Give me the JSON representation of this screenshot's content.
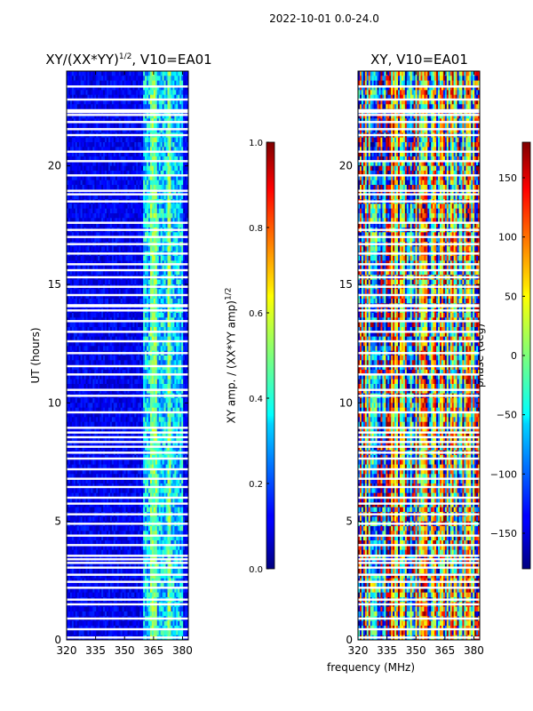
{
  "suptitle": "2022-10-01 0.0-24.0",
  "xlabel": "frequency (MHz)",
  "chart_data": [
    {
      "type": "heatmap",
      "title_pre": "XY/(XX*YY)",
      "title_sup": "1/2",
      "title_post": ", V10=EA01",
      "ylabel": "UT (hours)",
      "x_ticks": [
        320,
        335,
        350,
        365,
        380
      ],
      "y_ticks": [
        0,
        5,
        10,
        15,
        20
      ],
      "xlim": [
        320,
        383
      ],
      "ylim": [
        0,
        24
      ],
      "colorbar": {
        "label_pre": "XY amp. / (XX*YY amp)",
        "label_sup": "1/2",
        "ticks": [
          "0.0",
          "0.2",
          "0.4",
          "0.6",
          "0.8",
          "1.0"
        ],
        "range": [
          0,
          1
        ]
      },
      "description_values": {
        "background_amp": 0.05,
        "bright_band_MHz": [
          360,
          380
        ],
        "bright_band_amp": 0.35
      }
    },
    {
      "type": "heatmap",
      "title": "XY, V10=EA01",
      "x_ticks": [
        320,
        335,
        350,
        365,
        380
      ],
      "y_ticks": [
        0,
        5,
        10,
        15,
        20
      ],
      "xlim": [
        320,
        383
      ],
      "ylim": [
        0,
        24
      ],
      "colorbar": {
        "label": "phase (deg)",
        "ticks": [
          "150",
          "100",
          "50",
          "0",
          "−50",
          "−100",
          "−150"
        ],
        "tick_values": [
          150,
          100,
          50,
          0,
          -50,
          -100,
          -150
        ],
        "range": [
          -180,
          180
        ]
      }
    }
  ],
  "flagged_rows_hours": [
    0.1,
    0.45,
    0.9,
    1.5,
    1.7,
    2.2,
    2.45,
    2.75,
    3.05,
    3.25,
    3.4,
    3.55,
    4.0,
    4.4,
    4.9,
    5.3,
    5.75,
    6.0,
    6.45,
    6.8,
    7.2,
    7.65,
    7.9,
    8.15,
    8.35,
    8.55,
    8.75,
    8.95,
    9.6,
    10.3,
    10.55,
    11.2,
    11.55,
    12.1,
    12.6,
    13.0,
    13.45,
    13.9,
    14.1,
    14.55,
    14.9,
    15.3,
    15.6,
    15.85,
    16.3,
    16.7,
    17.0,
    17.3,
    17.6,
    18.5,
    18.8,
    18.95,
    19.6,
    20.2,
    20.6,
    21.3,
    21.55,
    21.85,
    22.15,
    22.35,
    22.8,
    23.35
  ]
}
